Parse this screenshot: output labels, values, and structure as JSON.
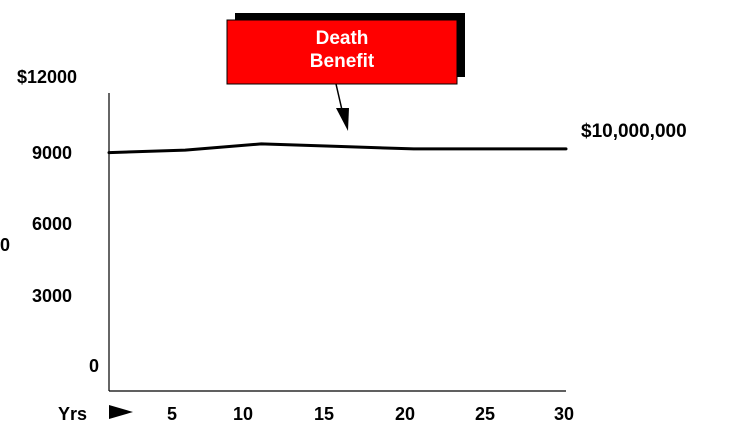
{
  "chart_data": {
    "type": "line",
    "x": [
      0,
      5,
      10,
      15,
      20,
      25,
      30
    ],
    "series": [
      {
        "values": [
          9600,
          9700,
          9950,
          9850,
          9750,
          9750,
          9750
        ]
      }
    ],
    "y_ticks": [
      "$12000",
      "9000",
      "6000",
      "3000",
      "0"
    ],
    "x_ticks": [
      "5",
      "10",
      "15",
      "20",
      "25",
      "30"
    ],
    "x_axis_prefix": "Yrs",
    "stray_left_label": "0",
    "ylim": [
      0,
      12000
    ],
    "xlim": [
      0,
      30
    ],
    "grid": false,
    "end_label": "$10,000,000",
    "callout": {
      "lines": [
        "Death",
        "Benefit"
      ],
      "fill_color": "#ff0000",
      "shadow_color": "#000000"
    }
  }
}
